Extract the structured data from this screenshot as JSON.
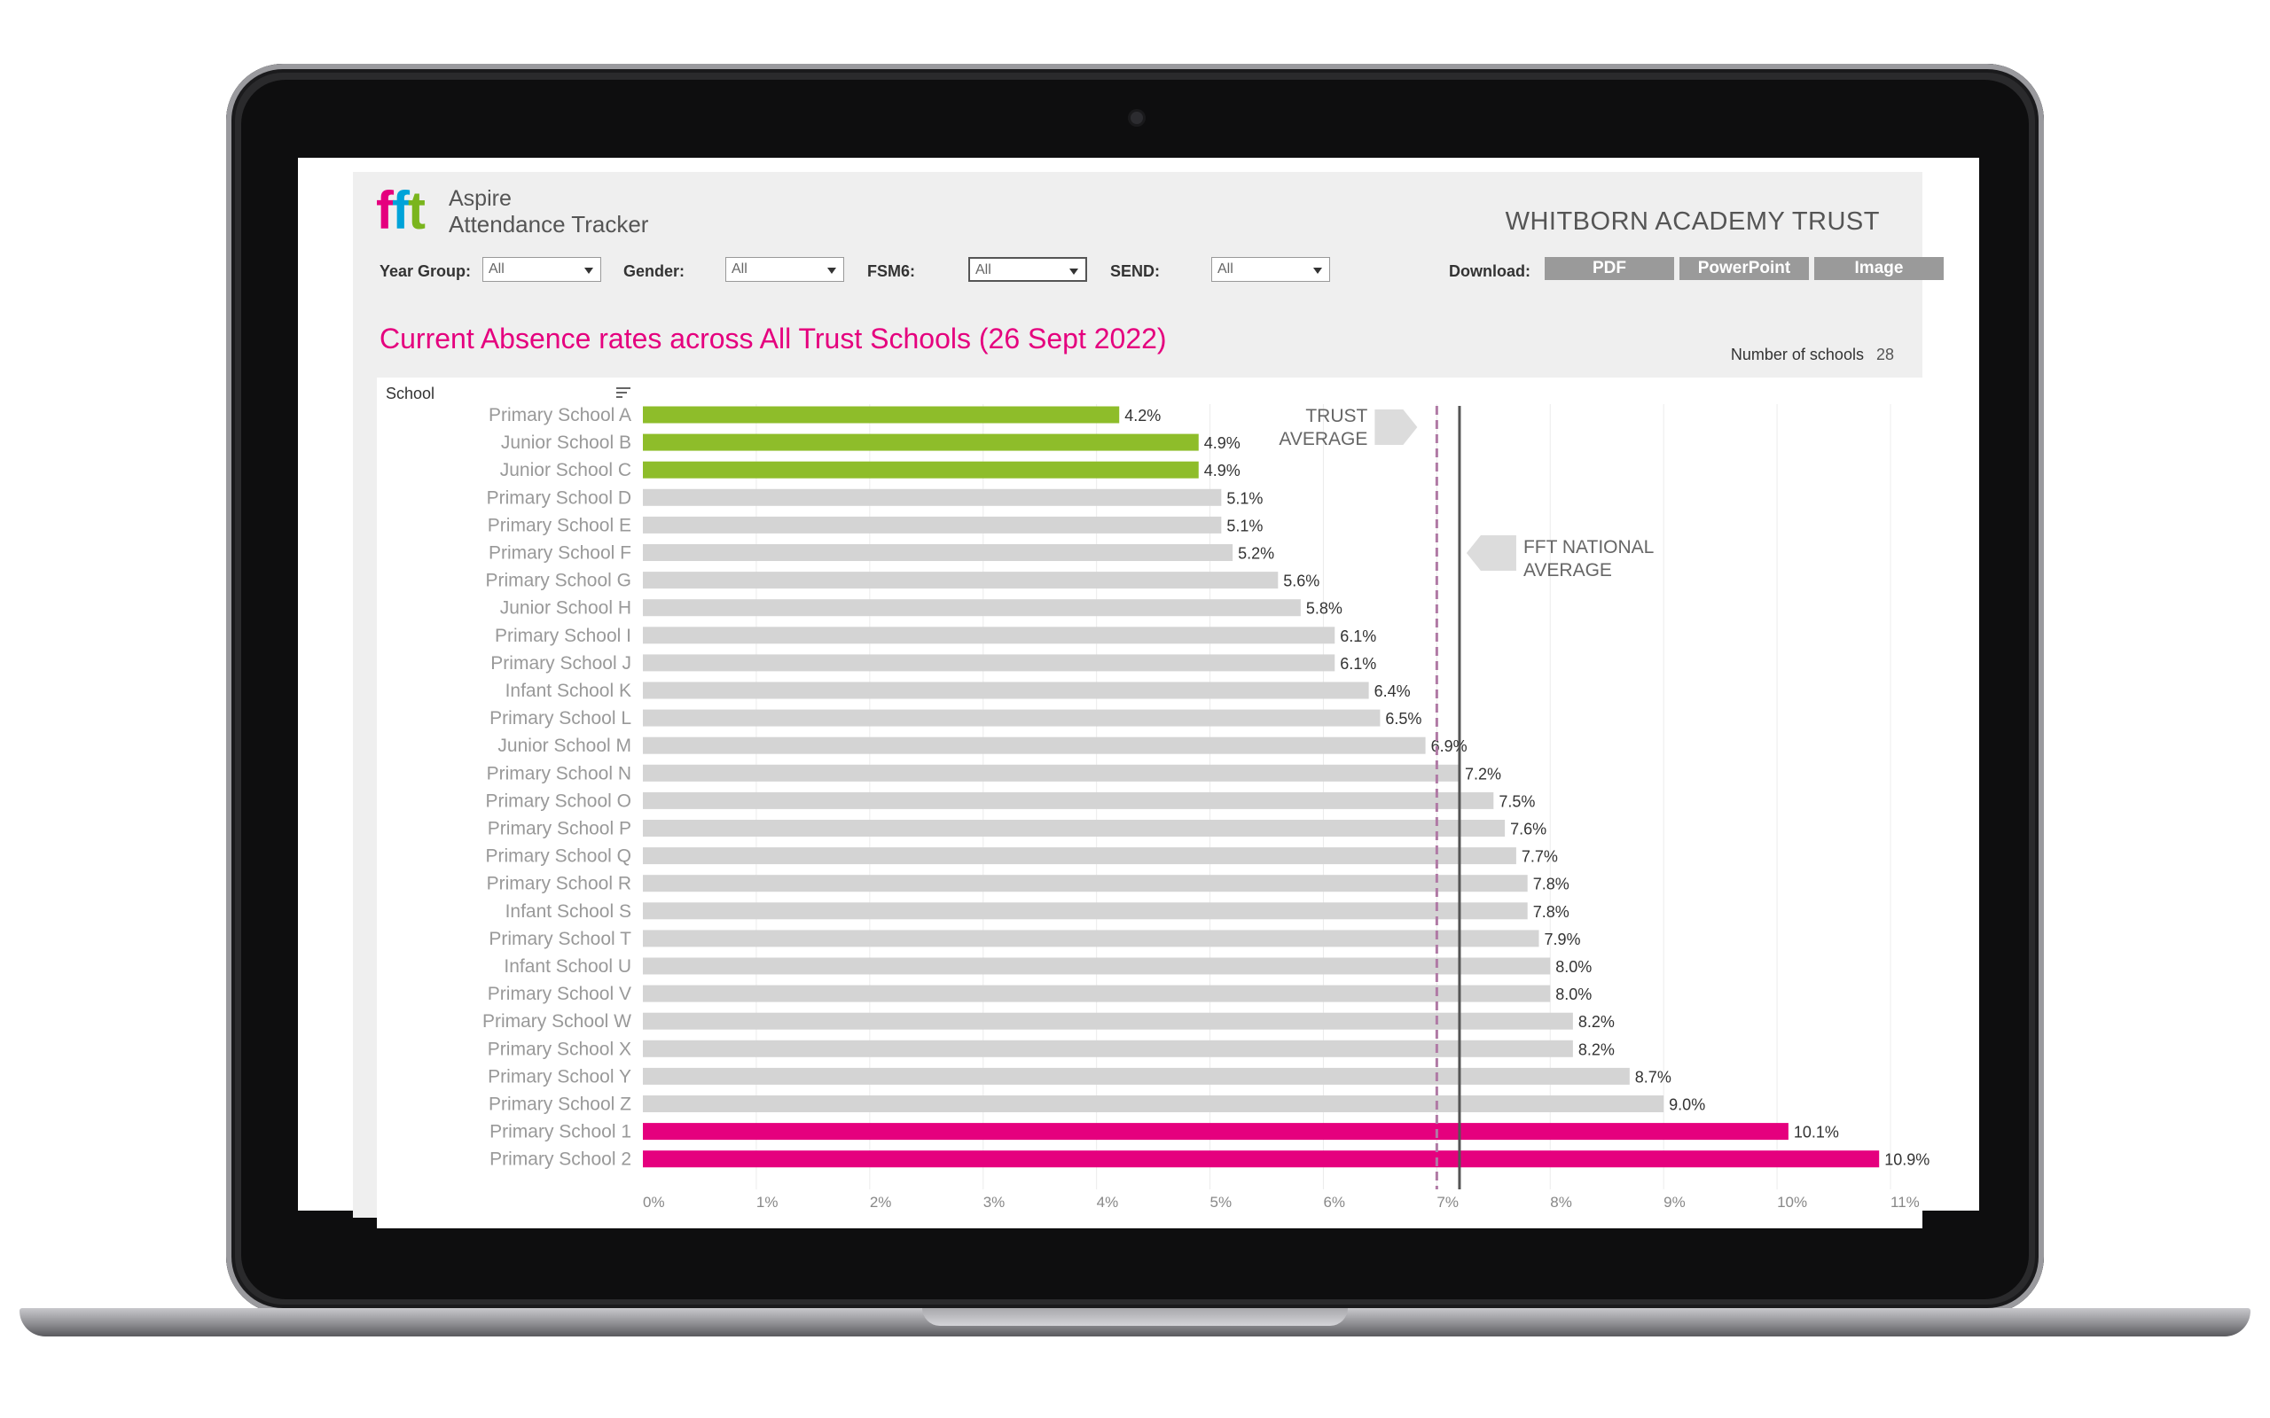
{
  "header": {
    "logo_text": "fft",
    "brand_line1": "Aspire",
    "brand_line2": "Attendance Tracker",
    "trust_name": "WHITBORN ACADEMY TRUST"
  },
  "filters": [
    {
      "label": "Year Group:",
      "value": "All"
    },
    {
      "label": "Gender:",
      "value": "All"
    },
    {
      "label": "FSM6:",
      "value": "All"
    },
    {
      "label": "SEND:",
      "value": "All"
    }
  ],
  "download": {
    "label": "Download:",
    "buttons": [
      "PDF",
      "PowerPoint",
      "Image"
    ]
  },
  "summary": {
    "label": "Number of schools",
    "value": "28"
  },
  "colors": {
    "best": "#8ebd2a",
    "worst": "#e5007e",
    "default": "#d4d4d4",
    "trust_line": "#b07aa5",
    "national_line": "#555555"
  },
  "chart_data": {
    "type": "bar",
    "orientation": "horizontal",
    "title": "Current Absence rates across All Trust Schools (26 Sept 2022)",
    "category_header": "School",
    "categories": [
      "Primary School A",
      "Junior School B",
      "Junior School C",
      "Primary School D",
      "Primary School E",
      "Primary School F",
      "Primary School G",
      "Junior School H",
      "Primary School I",
      "Primary School J",
      "Infant School K",
      "Primary School L",
      "Junior School M",
      "Primary School N",
      "Primary School O",
      "Primary School P",
      "Primary School Q",
      "Primary School R",
      "Infant School S",
      "Primary School T",
      "Infant School U",
      "Primary School V",
      "Primary School W",
      "Primary School X",
      "Primary School Y",
      "Primary School Z",
      "Primary School 1",
      "Primary School 2"
    ],
    "values": [
      4.2,
      4.9,
      4.9,
      5.1,
      5.1,
      5.2,
      5.6,
      5.8,
      6.1,
      6.1,
      6.4,
      6.5,
      6.9,
      7.2,
      7.5,
      7.6,
      7.7,
      7.8,
      7.8,
      7.9,
      8.0,
      8.0,
      8.2,
      8.2,
      8.7,
      9.0,
      10.1,
      10.9
    ],
    "value_labels": [
      "4.2%",
      "4.9%",
      "4.9%",
      "5.1%",
      "5.1%",
      "5.2%",
      "5.6%",
      "5.8%",
      "6.1%",
      "6.1%",
      "6.4%",
      "6.5%",
      "6.9%",
      "7.2%",
      "7.5%",
      "7.6%",
      "7.7%",
      "7.8%",
      "7.8%",
      "7.9%",
      "8.0%",
      "8.0%",
      "8.2%",
      "8.2%",
      "8.7%",
      "9.0%",
      "10.1%",
      "10.9%"
    ],
    "highlight": [
      "best",
      "best",
      "best",
      "default",
      "default",
      "default",
      "default",
      "default",
      "default",
      "default",
      "default",
      "default",
      "default",
      "default",
      "default",
      "default",
      "default",
      "default",
      "default",
      "default",
      "default",
      "default",
      "default",
      "default",
      "default",
      "default",
      "worst",
      "worst"
    ],
    "xlim": [
      0,
      11
    ],
    "xticks": [
      0,
      1,
      2,
      3,
      4,
      5,
      6,
      7,
      8,
      9,
      10,
      11
    ],
    "xtick_labels": [
      "0%",
      "1%",
      "2%",
      "3%",
      "4%",
      "5%",
      "6%",
      "7%",
      "8%",
      "9%",
      "10%",
      "11%"
    ],
    "grid": "vertical",
    "reference_lines": [
      {
        "name": "trust",
        "label_lines": [
          "TRUST",
          "AVERAGE"
        ],
        "value": 7.0,
        "style": "dashed"
      },
      {
        "name": "national",
        "label_lines": [
          "FFT NATIONAL",
          "AVERAGE"
        ],
        "value": 7.2,
        "style": "solid"
      }
    ]
  }
}
